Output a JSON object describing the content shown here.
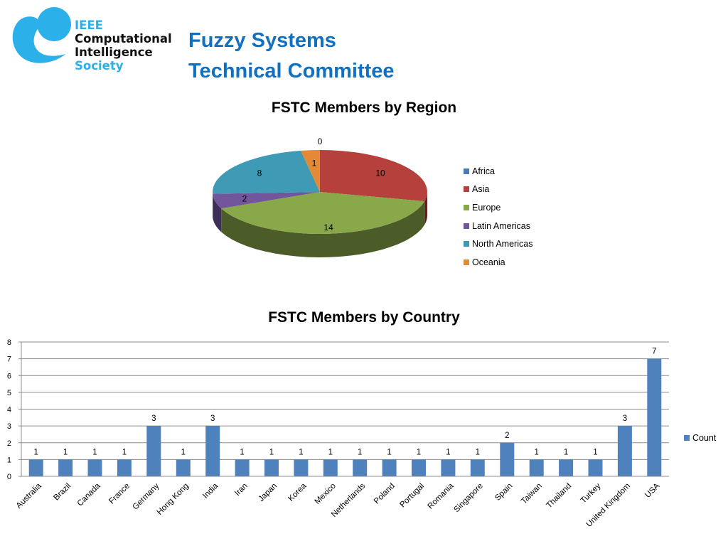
{
  "logo": {
    "line1": "IEEE",
    "line2": "Computational",
    "line3": "Intelligence",
    "line4": "Society",
    "brand_color": "#2bb0ea"
  },
  "header": {
    "title_line1": "Fuzzy Systems",
    "title_line2": "Technical Committee",
    "title_color": "#1170c0"
  },
  "chart_data": [
    {
      "type": "pie",
      "title": "FSTC Members by Region",
      "labels": [
        "Africa",
        "Asia",
        "Europe",
        "Latin Americas",
        "North Americas",
        "Oceania"
      ],
      "values": [
        0,
        10,
        14,
        2,
        8,
        1
      ],
      "colors": [
        "#4a7bbd",
        "#b5403c",
        "#89a84a",
        "#71569c",
        "#3f9bb5",
        "#e28a36"
      ],
      "legend": "right",
      "style": "3d"
    },
    {
      "type": "bar",
      "title": "FSTC Members by Country",
      "categories": [
        "Australia",
        "Brazil",
        "Canada",
        "France",
        "Germany",
        "Hong Kong",
        "India",
        "Iran",
        "Japan",
        "Korea",
        "Mexico",
        "Netherlands",
        "Poland",
        "Portugal",
        "Romania",
        "Singapore",
        "Spain",
        "Taiwan",
        "Thailand",
        "Turkey",
        "United Kingdom",
        "USA"
      ],
      "series": [
        {
          "name": "Count",
          "values": [
            1,
            1,
            1,
            1,
            3,
            1,
            3,
            1,
            1,
            1,
            1,
            1,
            1,
            1,
            1,
            1,
            2,
            1,
            1,
            1,
            3,
            7
          ],
          "color": "#4f81bd"
        }
      ],
      "ylim": [
        0,
        8
      ],
      "yticks": [
        "0",
        "1",
        "2",
        "3",
        "4",
        "5",
        "6",
        "7",
        "8"
      ],
      "grid": true,
      "data_labels": true,
      "legend": "right"
    }
  ]
}
